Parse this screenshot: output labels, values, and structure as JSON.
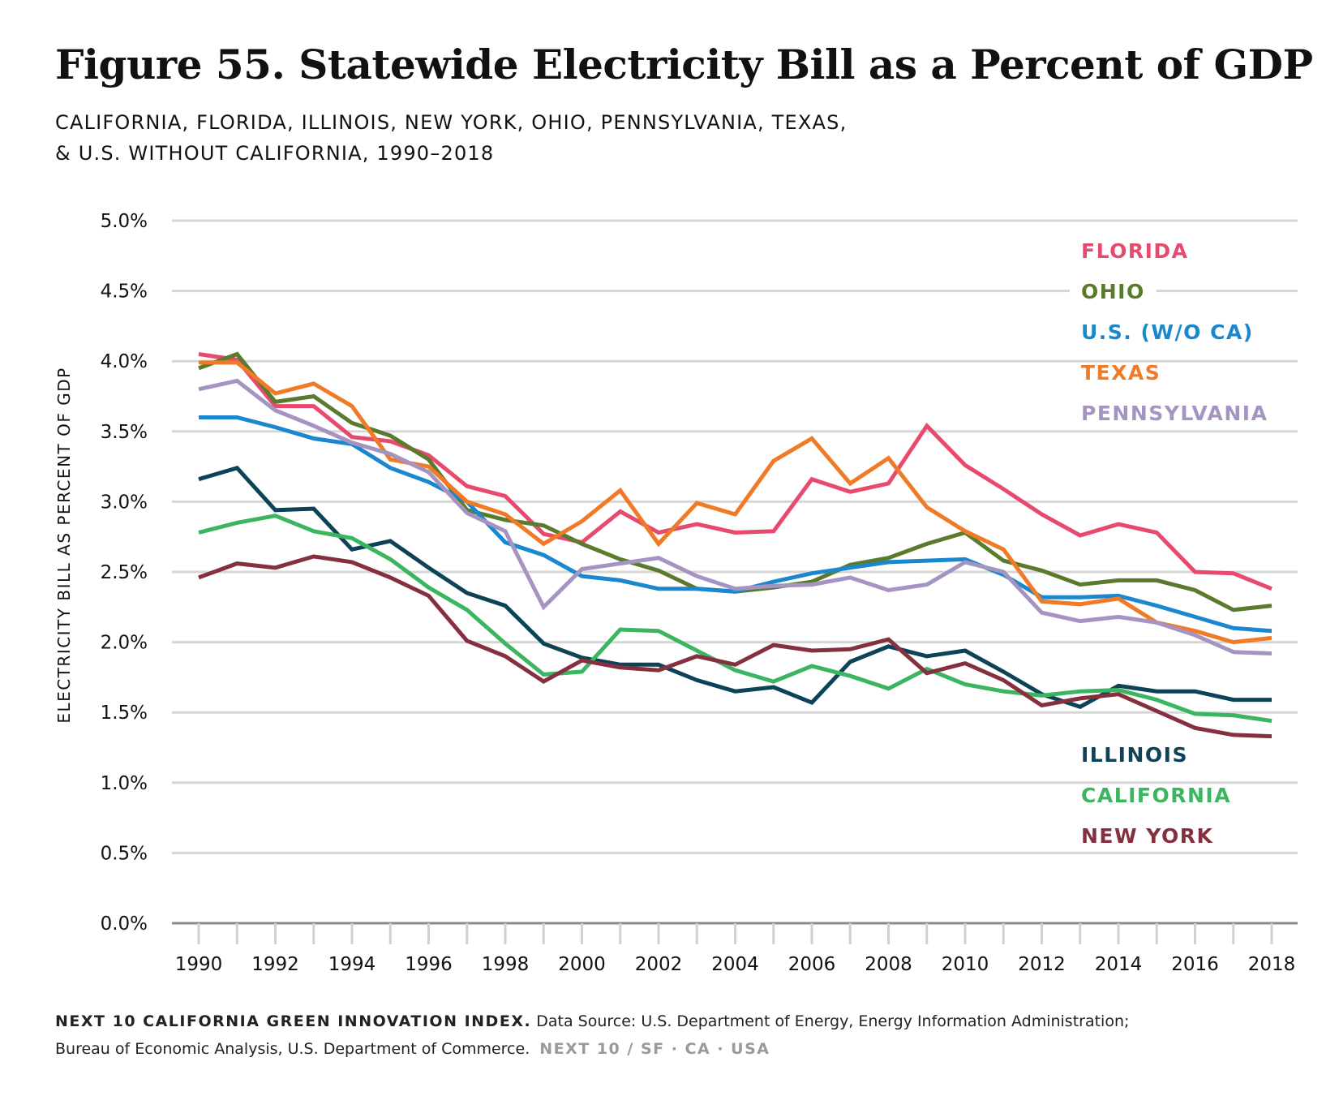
{
  "header": {
    "title": "Figure 55. Statewide Electricity Bill as a Percent of GDP",
    "subtitle_line1": "CALIFORNIA, FLORIDA, ILLINOIS, NEW YORK, OHIO, PENNSYLVANIA, TEXAS,",
    "subtitle_line2": "& U.S. WITHOUT CALIFORNIA, 1990–2018"
  },
  "footer": {
    "brand": "NEXT 10 CALIFORNIA GREEN INNOVATION INDEX.",
    "source_line1": "Data Source: U.S. Department of Energy, Energy Information Administration;",
    "source_line2": "Bureau of Economic Analysis, U.S. Department of Commerce.",
    "tag": "NEXT 10  /  SF · CA · USA"
  },
  "chart_data": {
    "type": "line",
    "ylabel": "ELECTRICITY BILL AS PERCENT OF GDP",
    "xlabel": "",
    "ylim": [
      0,
      5
    ],
    "yticks": [
      "0.0%",
      "0.5%",
      "1.0%",
      "1.5%",
      "2.0%",
      "2.5%",
      "3.0%",
      "3.5%",
      "4.0%",
      "4.5%",
      "5.0%"
    ],
    "xticks": [
      "1990",
      "1992",
      "1994",
      "1996",
      "1998",
      "2000",
      "2002",
      "2004",
      "2006",
      "2008",
      "2010",
      "2012",
      "2014",
      "2016",
      "2018"
    ],
    "grid": true,
    "x": [
      1990,
      1991,
      1992,
      1993,
      1994,
      1995,
      1996,
      1997,
      1998,
      1999,
      2000,
      2001,
      2002,
      2003,
      2004,
      2005,
      2006,
      2007,
      2008,
      2009,
      2010,
      2011,
      2012,
      2013,
      2014,
      2015,
      2016,
      2017,
      2018
    ],
    "series": [
      {
        "name": "FLORIDA",
        "color": "#e84a6e",
        "values": [
          4.05,
          4.01,
          3.68,
          3.68,
          3.46,
          3.43,
          3.33,
          3.11,
          3.04,
          2.77,
          2.71,
          2.93,
          2.78,
          2.84,
          2.78,
          2.79,
          3.16,
          3.07,
          3.13,
          3.54,
          3.26,
          3.09,
          2.91,
          2.76,
          2.84,
          2.78,
          2.5,
          2.49,
          2.38
        ]
      },
      {
        "name": "OHIO",
        "color": "#5a7a2e",
        "values": [
          3.95,
          4.05,
          3.71,
          3.75,
          3.56,
          3.47,
          3.3,
          2.94,
          2.87,
          2.83,
          2.7,
          2.59,
          2.51,
          2.38,
          2.36,
          2.39,
          2.43,
          2.55,
          2.6,
          2.7,
          2.78,
          2.58,
          2.51,
          2.41,
          2.44,
          2.44,
          2.37,
          2.23,
          2.26
        ]
      },
      {
        "name": "U.S. (W/O CA)",
        "color": "#1b87cf",
        "values": [
          3.6,
          3.6,
          3.53,
          3.45,
          3.41,
          3.24,
          3.14,
          3.0,
          2.71,
          2.62,
          2.47,
          2.44,
          2.38,
          2.38,
          2.36,
          2.43,
          2.49,
          2.53,
          2.57,
          2.58,
          2.59,
          2.48,
          2.32,
          2.32,
          2.33,
          2.26,
          2.18,
          2.1,
          2.08
        ]
      },
      {
        "name": "TEXAS",
        "color": "#f07a26",
        "values": [
          3.99,
          3.99,
          3.77,
          3.84,
          3.68,
          3.3,
          3.25,
          3.0,
          2.91,
          2.7,
          2.86,
          3.08,
          2.7,
          2.99,
          2.91,
          3.29,
          3.45,
          3.13,
          3.31,
          2.96,
          2.79,
          2.66,
          2.29,
          2.27,
          2.31,
          2.14,
          2.08,
          2.0,
          2.03
        ]
      },
      {
        "name": "PENNSYLVANIA",
        "color": "#a593c2",
        "values": [
          3.8,
          3.86,
          3.65,
          3.54,
          3.42,
          3.34,
          3.21,
          2.92,
          2.79,
          2.25,
          2.52,
          2.56,
          2.6,
          2.47,
          2.38,
          2.4,
          2.41,
          2.46,
          2.37,
          2.41,
          2.57,
          2.5,
          2.21,
          2.15,
          2.18,
          2.14,
          2.05,
          1.93,
          1.92
        ]
      },
      {
        "name": "ILLINOIS",
        "color": "#0d4257",
        "values": [
          3.16,
          3.24,
          2.94,
          2.95,
          2.66,
          2.72,
          2.53,
          2.35,
          2.26,
          1.99,
          1.89,
          1.84,
          1.84,
          1.73,
          1.65,
          1.68,
          1.57,
          1.86,
          1.97,
          1.9,
          1.94,
          1.79,
          1.63,
          1.54,
          1.69,
          1.65,
          1.65,
          1.59,
          1.59
        ]
      },
      {
        "name": "CALIFORNIA",
        "color": "#3cb560",
        "values": [
          2.78,
          2.85,
          2.9,
          2.79,
          2.74,
          2.59,
          2.39,
          2.23,
          1.99,
          1.77,
          1.79,
          2.09,
          2.08,
          1.94,
          1.8,
          1.72,
          1.83,
          1.76,
          1.67,
          1.81,
          1.7,
          1.65,
          1.62,
          1.65,
          1.66,
          1.59,
          1.49,
          1.48,
          1.44
        ]
      },
      {
        "name": "NEW YORK",
        "color": "#85303f",
        "values": [
          2.46,
          2.56,
          2.53,
          2.61,
          2.57,
          2.46,
          2.33,
          2.01,
          1.9,
          1.72,
          1.87,
          1.82,
          1.8,
          1.9,
          1.84,
          1.98,
          1.94,
          1.95,
          2.02,
          1.78,
          1.85,
          1.73,
          1.55,
          1.6,
          1.63,
          1.51,
          1.39,
          1.34,
          1.33
        ]
      }
    ]
  }
}
